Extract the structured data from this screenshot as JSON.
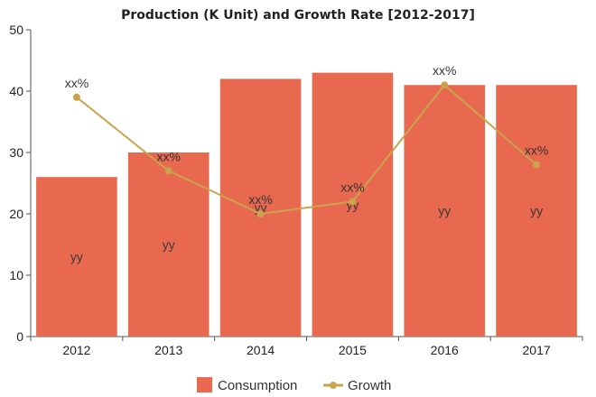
{
  "chart_data": {
    "type": "bar",
    "title": "Production (K Unit) and Growth Rate [2012-2017]",
    "categories": [
      "2012",
      "2013",
      "2014",
      "2015",
      "2016",
      "2017"
    ],
    "ylim": [
      0,
      50
    ],
    "yticks": [
      "0",
      "10",
      "20",
      "30",
      "40",
      "50"
    ],
    "series": [
      {
        "name": "Consumption",
        "type": "bar",
        "color": "#e8694f",
        "values": [
          26,
          30,
          42,
          43,
          41,
          41
        ],
        "labels": [
          "yy",
          "yy",
          "yy",
          "yy",
          "yy",
          "yy"
        ]
      },
      {
        "name": "Growth",
        "type": "line",
        "color": "#c9a44a",
        "values": [
          39,
          27,
          20,
          22,
          41,
          28
        ],
        "labels": [
          "xx%",
          "xx%",
          "xx%",
          "xx%",
          "xx%",
          "xx%"
        ]
      }
    ],
    "grid": false,
    "legend": "bottom-center"
  }
}
